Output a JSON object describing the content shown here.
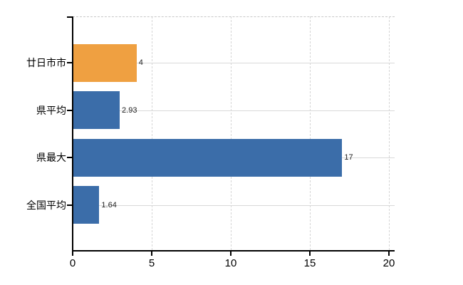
{
  "chart_data": {
    "type": "bar",
    "orientation": "horizontal",
    "title": "",
    "xlabel": "",
    "ylabel": "",
    "categories": [
      "廿日市市",
      "県平均",
      "県最大",
      "全国平均"
    ],
    "values": [
      4,
      2.93,
      17,
      1.64
    ],
    "value_labels": [
      "4",
      "2.93",
      "17",
      "1.64"
    ],
    "bar_colors": [
      "#EFA041",
      "#3B6DA9",
      "#3B6DA9",
      "#3B6DA9"
    ],
    "x_ticks": [
      0,
      5,
      10,
      15,
      20
    ],
    "xlim": [
      0,
      20
    ],
    "grid": true,
    "legend": false,
    "colors": {
      "accent_orange": "#EFA041",
      "accent_blue": "#3B6DA9",
      "grid": "#d9d9d9",
      "axis": "#000000",
      "label_text": "#000000",
      "value_text": "#222222",
      "background": "#ffffff"
    }
  }
}
